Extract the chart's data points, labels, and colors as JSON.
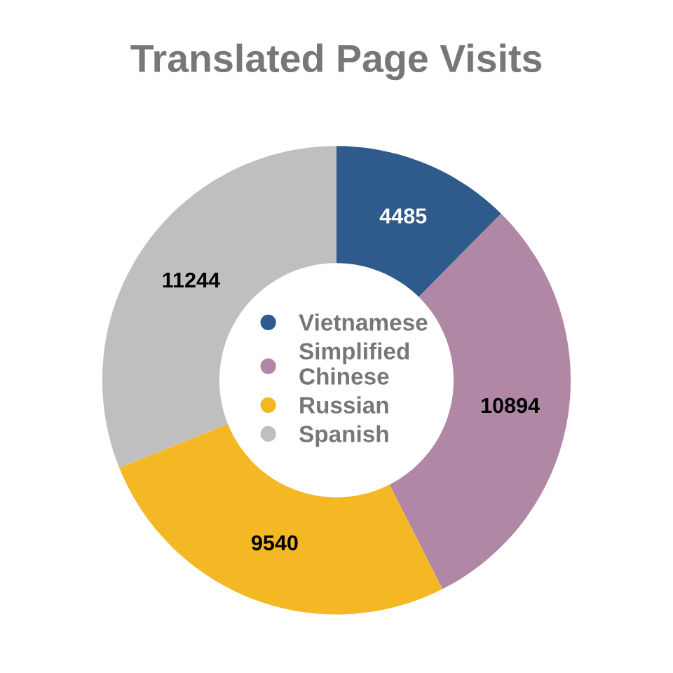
{
  "chart_data": {
    "type": "donut",
    "title": "Translated Page Visits",
    "categories": [
      "Vietnamese",
      "Simplified Chinese",
      "Russian",
      "Spanish"
    ],
    "values": [
      4485,
      10894,
      9540,
      11244
    ],
    "colors": [
      "#2e5b8c",
      "#b088a5",
      "#f3b823",
      "#bfbfbf"
    ],
    "data_labels": true,
    "legend": "center"
  }
}
